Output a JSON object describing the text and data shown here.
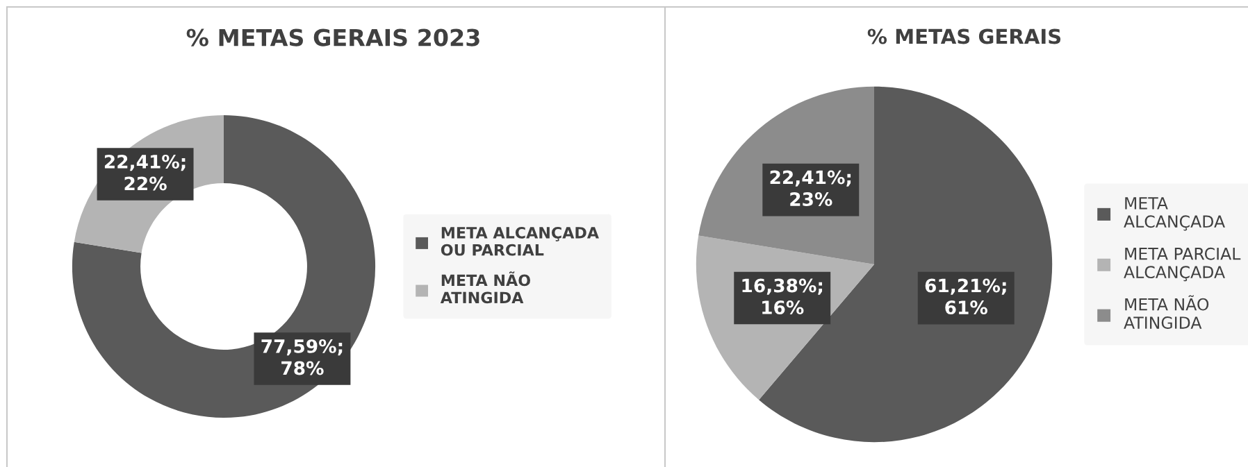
{
  "chart_data": [
    {
      "type": "donut",
      "title": "% METAS GERAIS 2023",
      "categories": [
        "META ALCANÇADA OU PARCIAL",
        "META NÃO ATINGIDA"
      ],
      "values": [
        77.59,
        22.41
      ],
      "colors": [
        "#5a5a5a",
        "#b4b4b4"
      ],
      "value_labels": [
        "77,59%;\n78%",
        "22,41%;\n22%"
      ],
      "legend": "right"
    },
    {
      "type": "pie",
      "title": "% METAS GERAIS",
      "categories": [
        "META ALCANÇADA",
        "META PARCIAL ALCANÇADA",
        "META NÃO ATINGIDA"
      ],
      "values": [
        61.21,
        16.38,
        22.41
      ],
      "colors": [
        "#5a5a5a",
        "#b4b4b4",
        "#8c8c8c"
      ],
      "value_labels": [
        "61,21%;\n61%",
        "16,38%;\n16%",
        "22,41%;\n23%"
      ],
      "legend": "right"
    }
  ]
}
